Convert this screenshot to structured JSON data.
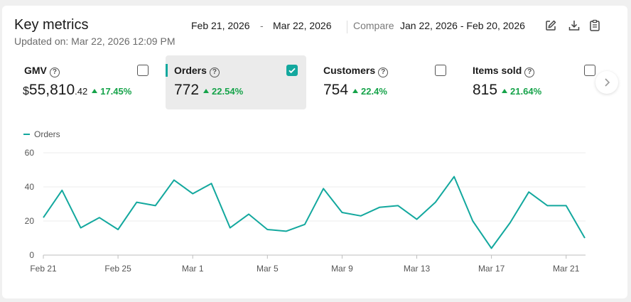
{
  "header": {
    "title": "Key metrics",
    "updated": "Updated on: Mar 22, 2026 12:09 PM",
    "date_start": "Feb 21, 2026",
    "date_separator": "-",
    "date_end": "Mar 22, 2026",
    "compare_label": "Compare",
    "compare_range": "Jan 22, 2026 - Feb 20, 2026",
    "icons": [
      "edit-icon",
      "download-icon",
      "clipboard-icon"
    ]
  },
  "metrics": [
    {
      "label": "GMV",
      "currency": "$",
      "value": "55,810",
      "decimals": ".42",
      "change": "17.45%",
      "checked": false
    },
    {
      "label": "Orders",
      "value": "772",
      "change": "22.54%",
      "checked": true
    },
    {
      "label": "Customers",
      "value": "754",
      "change": "22.4%",
      "checked": false
    },
    {
      "label": "Items sold",
      "value": "815",
      "change": "21.64%",
      "checked": false
    }
  ],
  "colors": {
    "accent": "#13a89e",
    "positive": "#16a34a"
  },
  "chart_data": {
    "type": "line",
    "legend": "Orders",
    "legend_position": "top-left",
    "grid": true,
    "ylim": [
      0,
      60
    ],
    "yticks": [
      0,
      20,
      40,
      60
    ],
    "xticks": [
      {
        "day": 0,
        "label": "Feb 21"
      },
      {
        "day": 4,
        "label": "Feb 25"
      },
      {
        "day": 8,
        "label": "Mar 1"
      },
      {
        "day": 12,
        "label": "Mar 5"
      },
      {
        "day": 16,
        "label": "Mar 9"
      },
      {
        "day": 20,
        "label": "Mar 13"
      },
      {
        "day": 24,
        "label": "Mar 17"
      },
      {
        "day": 28,
        "label": "Mar 21"
      }
    ],
    "series": [
      {
        "name": "Orders",
        "values": [
          22,
          38,
          16,
          22,
          15,
          31,
          29,
          44,
          36,
          42,
          16,
          24,
          15,
          14,
          18,
          39,
          25,
          23,
          28,
          29,
          21,
          31,
          46,
          20,
          4,
          19,
          37,
          29,
          29,
          10
        ]
      }
    ]
  }
}
